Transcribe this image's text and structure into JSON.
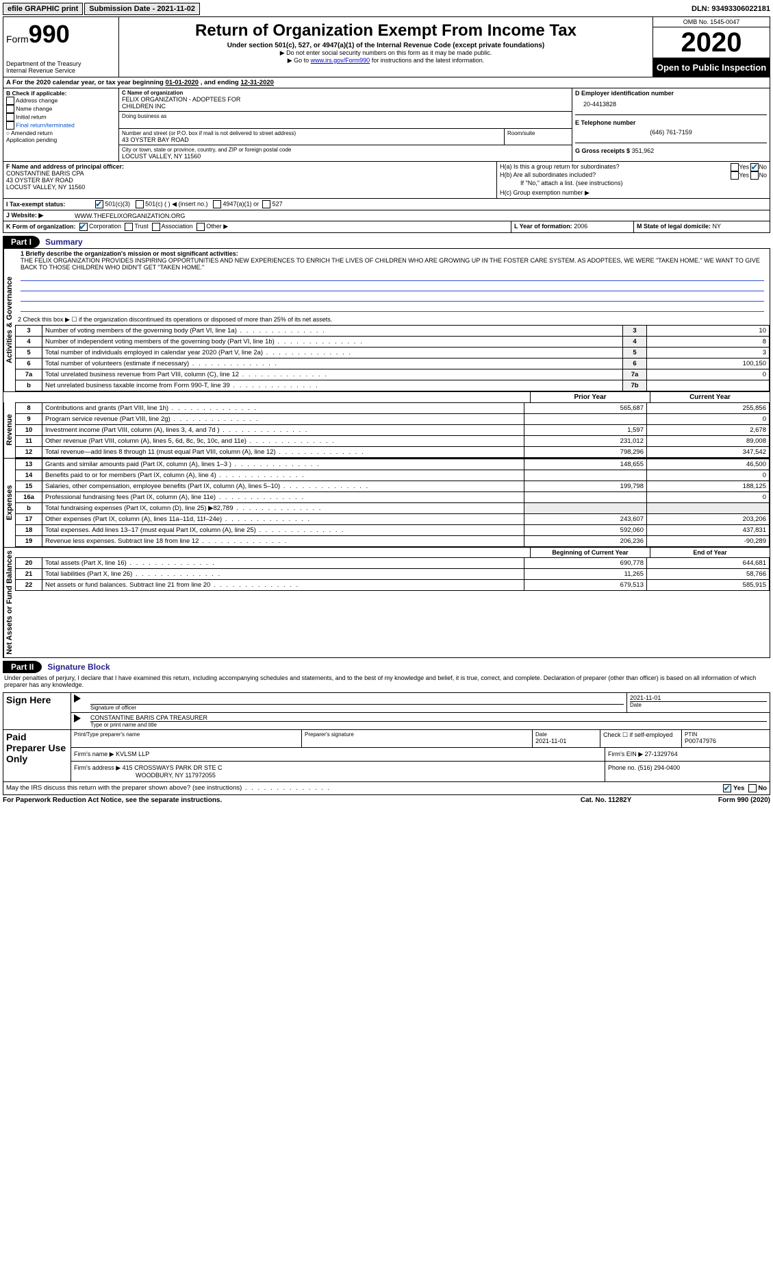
{
  "top": {
    "efile": "efile GRAPHIC print",
    "submission_label": "Submission Date - 2021-11-02",
    "dln_label": "DLN: 93493306022181"
  },
  "header": {
    "form_word": "Form",
    "form_num": "990",
    "dept": "Department of the Treasury",
    "irs": "Internal Revenue Service",
    "title": "Return of Organization Exempt From Income Tax",
    "subtitle": "Under section 501(c), 527, or 4947(a)(1) of the Internal Revenue Code (except private foundations)",
    "note1": "▶ Do not enter social security numbers on this form as it may be made public.",
    "note2_pre": "▶ Go to ",
    "note2_link": "www.irs.gov/Form990",
    "note2_post": " for instructions and the latest information.",
    "omb": "OMB No. 1545-0047",
    "year": "2020",
    "open": "Open to Public Inspection"
  },
  "A": {
    "text_pre": "A For the 2020 calendar year, or tax year beginning ",
    "begin": "01-01-2020",
    "mid": " , and ending ",
    "end": "12-31-2020"
  },
  "B": {
    "heading": "B Check if applicable:",
    "addr": "Address change",
    "name": "Name change",
    "initial": "Initial return",
    "final": "Final return/terminated",
    "amended": "Amended return",
    "app": "Application pending"
  },
  "C": {
    "label": "C Name of organization",
    "org1": "FELIX ORGANIZATION - ADOPTEES FOR",
    "org2": "CHILDREN INC",
    "dba_label": "Doing business as",
    "street_label": "Number and street (or P.O. box if mail is not delivered to street address)",
    "room_label": "Room/suite",
    "street": "43 OYSTER BAY ROAD",
    "city_label": "City or town, state or province, country, and ZIP or foreign postal code",
    "city": "LOCUST VALLEY, NY  11560"
  },
  "D": {
    "label": "D Employer identification number",
    "val": "20-4413828"
  },
  "E": {
    "label": "E Telephone number",
    "val": "(646) 761-7159"
  },
  "G": {
    "label": "G Gross receipts $",
    "val": "351,962"
  },
  "F": {
    "label": "F  Name and address of principal officer:",
    "l1": "CONSTANTINE BARIS CPA",
    "l2": "43 OYSTER BAY ROAD",
    "l3": "LOCUST VALLEY, NY  11560"
  },
  "H": {
    "a": "H(a)  Is this a group return for subordinates?",
    "b": "H(b)  Are all subordinates included?",
    "bnote": "If \"No,\" attach a list. (see instructions)",
    "c": "H(c)  Group exemption number ▶",
    "yes": "Yes",
    "no": "No"
  },
  "I": {
    "label": "I   Tax-exempt status:",
    "o1": "501(c)(3)",
    "o2": "501(c) (   ) ◀ (insert no.)",
    "o3": "4947(a)(1) or",
    "o4": "527"
  },
  "J": {
    "label": "J   Website: ▶",
    "val": "WWW.THEFELIXORGANIZATION.ORG"
  },
  "K": {
    "label": "K Form of organization:",
    "o1": "Corporation",
    "o2": "Trust",
    "o3": "Association",
    "o4": "Other ▶"
  },
  "L": {
    "label": "L Year of formation:",
    "val": "2006"
  },
  "M": {
    "label": "M State of legal domicile:",
    "val": "NY"
  },
  "part1": {
    "label": "Part I",
    "title": "Summary"
  },
  "summary": {
    "vlabel": "Activities & Governance",
    "l1": "1  Briefly describe the organization's mission or most significant activities:",
    "mission": "THE FELIX ORGANIZATION PROVIDES INSPIRING OPPORTUNITIES AND NEW EXPERIENCES TO ENRICH THE LIVES OF CHILDREN WHO ARE GROWING UP IN THE FOSTER CARE SYSTEM. AS ADOPTEES, WE WERE \"TAKEN HOME.\" WE WANT TO GIVE BACK TO THOSE CHILDREN WHO DIDN'T GET \"TAKEN HOME.\"",
    "l2": "2   Check this box ▶ ☐ if the organization discontinued its operations or disposed of more than 25% of its net assets.",
    "rows": [
      {
        "n": "3",
        "t": "Number of voting members of the governing body (Part VI, line 1a)",
        "box": "3",
        "v": "10"
      },
      {
        "n": "4",
        "t": "Number of independent voting members of the governing body (Part VI, line 1b)",
        "box": "4",
        "v": "8"
      },
      {
        "n": "5",
        "t": "Total number of individuals employed in calendar year 2020 (Part V, line 2a)",
        "box": "5",
        "v": "3"
      },
      {
        "n": "6",
        "t": "Total number of volunteers (estimate if necessary)",
        "box": "6",
        "v": "100,150"
      },
      {
        "n": "7a",
        "t": "Total unrelated business revenue from Part VIII, column (C), line 12",
        "box": "7a",
        "v": "0"
      },
      {
        "n": "b",
        "t": "Net unrelated business taxable income from Form 990-T, line 39",
        "box": "7b",
        "v": ""
      }
    ]
  },
  "revexp": {
    "prior": "Prior Year",
    "current": "Current Year",
    "vrev": "Revenue",
    "vexp": "Expenses",
    "vnet": "Net Assets or Fund Balances",
    "rows": [
      {
        "sec": "rev",
        "n": "8",
        "t": "Contributions and grants (Part VIII, line 1h)",
        "p": "565,687",
        "c": "255,856"
      },
      {
        "sec": "rev",
        "n": "9",
        "t": "Program service revenue (Part VIII, line 2g)",
        "p": "",
        "c": "0"
      },
      {
        "sec": "rev",
        "n": "10",
        "t": "Investment income (Part VIII, column (A), lines 3, 4, and 7d )",
        "p": "1,597",
        "c": "2,678"
      },
      {
        "sec": "rev",
        "n": "11",
        "t": "Other revenue (Part VIII, column (A), lines 5, 6d, 8c, 9c, 10c, and 11e)",
        "p": "231,012",
        "c": "89,008"
      },
      {
        "sec": "rev",
        "n": "12",
        "t": "Total revenue—add lines 8 through 11 (must equal Part VIII, column (A), line 12)",
        "p": "798,296",
        "c": "347,542"
      },
      {
        "sec": "exp",
        "n": "13",
        "t": "Grants and similar amounts paid (Part IX, column (A), lines 1–3 )",
        "p": "148,655",
        "c": "46,500"
      },
      {
        "sec": "exp",
        "n": "14",
        "t": "Benefits paid to or for members (Part IX, column (A), line 4)",
        "p": "",
        "c": "0"
      },
      {
        "sec": "exp",
        "n": "15",
        "t": "Salaries, other compensation, employee benefits (Part IX, column (A), lines 5–10)",
        "p": "199,798",
        "c": "188,125"
      },
      {
        "sec": "exp",
        "n": "16a",
        "t": "Professional fundraising fees (Part IX, column (A), line 11e)",
        "p": "",
        "c": "0"
      },
      {
        "sec": "exp",
        "n": "b",
        "t": "Total fundraising expenses (Part IX, column (D), line 25) ▶82,789",
        "p": "—",
        "c": "—"
      },
      {
        "sec": "exp",
        "n": "17",
        "t": "Other expenses (Part IX, column (A), lines 11a–11d, 11f–24e)",
        "p": "243,607",
        "c": "203,206"
      },
      {
        "sec": "exp",
        "n": "18",
        "t": "Total expenses. Add lines 13–17 (must equal Part IX, column (A), line 25)",
        "p": "592,060",
        "c": "437,831"
      },
      {
        "sec": "exp",
        "n": "19",
        "t": "Revenue less expenses. Subtract line 18 from line 12",
        "p": "206,236",
        "c": "-90,289"
      }
    ],
    "bhdr_p": "Beginning of Current Year",
    "bhdr_c": "End of Year",
    "brows": [
      {
        "n": "20",
        "t": "Total assets (Part X, line 16)",
        "p": "690,778",
        "c": "644,681"
      },
      {
        "n": "21",
        "t": "Total liabilities (Part X, line 26)",
        "p": "11,265",
        "c": "58,766"
      },
      {
        "n": "22",
        "t": "Net assets or fund balances. Subtract line 21 from line 20",
        "p": "679,513",
        "c": "585,915"
      }
    ]
  },
  "part2": {
    "label": "Part II",
    "title": "Signature Block"
  },
  "sig": {
    "decl": "Under penalties of perjury, I declare that I have examined this return, including accompanying schedules and statements, and to the best of my knowledge and belief, it is true, correct, and complete. Declaration of preparer (other than officer) is based on all information of which preparer has any knowledge.",
    "sign_here": "Sign Here",
    "sig_officer": "Signature of officer",
    "date": "Date",
    "date_val": "2021-11-01",
    "name_title": "CONSTANTINE BARIS CPA  TREASURER",
    "type_name": "Type or print name and title",
    "paid": "Paid Preparer Use Only",
    "p_name_lbl": "Print/Type preparer's name",
    "p_sig_lbl": "Preparer's signature",
    "p_date_lbl": "Date",
    "p_date": "2021-11-01",
    "p_check": "Check ☐ if self-employed",
    "ptin_lbl": "PTIN",
    "ptin": "P00747976",
    "firm_name_lbl": "Firm's name   ▶",
    "firm_name": "KVLSM LLP",
    "firm_ein_lbl": "Firm's EIN ▶",
    "firm_ein": "27-1329764",
    "firm_addr_lbl": "Firm's address ▶",
    "firm_addr1": "415 CROSSWAYS PARK DR STE C",
    "firm_addr2": "WOODBURY, NY  117972055",
    "phone_lbl": "Phone no.",
    "phone": "(516) 294-0400",
    "discuss": "May the IRS discuss this return with the preparer shown above? (see instructions)"
  },
  "footer": {
    "left": "For Paperwork Reduction Act Notice, see the separate instructions.",
    "mid": "Cat. No. 11282Y",
    "right": "Form 990 (2020)"
  }
}
